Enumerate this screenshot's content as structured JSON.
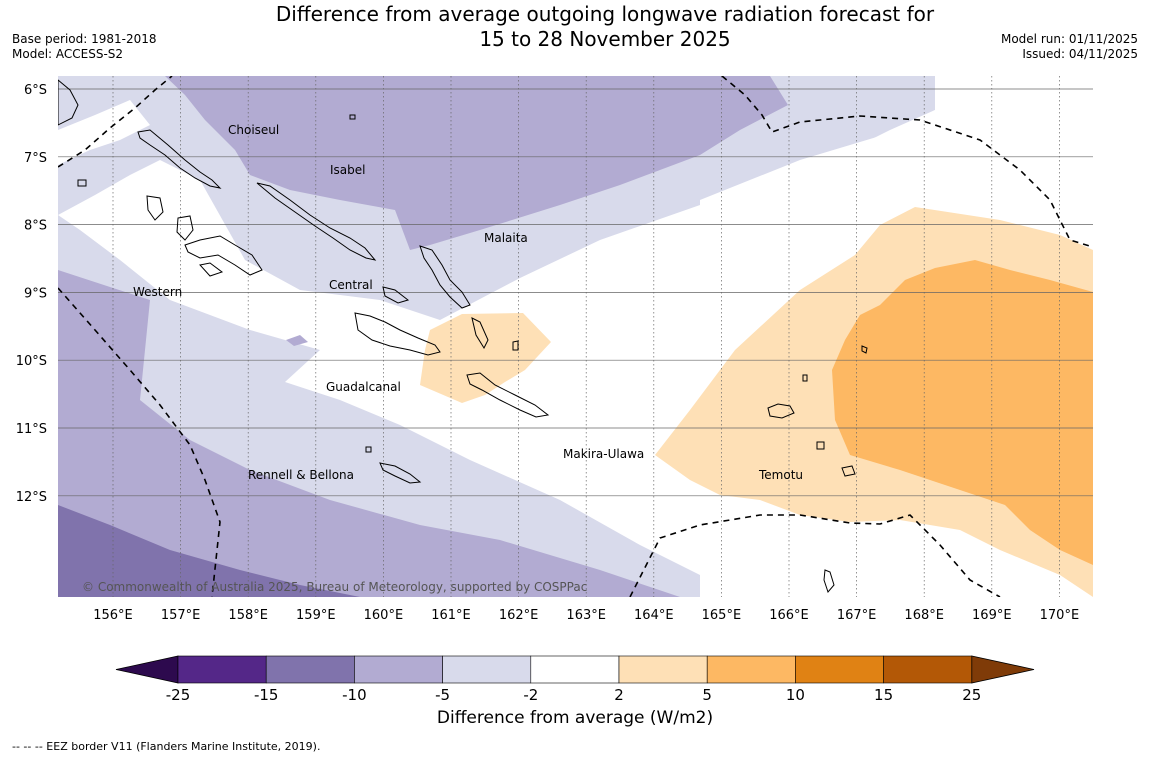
{
  "header": {
    "title_line1": "Difference from average outgoing longwave radiation forecast for",
    "title_line2": "15 to 28 November 2025",
    "base_period": "Base period: 1981-2018",
    "model": "Model: ACCESS-S2",
    "model_run": "Model run: 01/11/2025",
    "issued": "Issued: 04/11/2025"
  },
  "map": {
    "lat_labels": [
      "6°S",
      "7°S",
      "8°S",
      "9°S",
      "10°S",
      "11°S",
      "12°S"
    ],
    "lon_labels": [
      "156°E",
      "157°E",
      "158°E",
      "159°E",
      "160°E",
      "161°E",
      "162°E",
      "163°E",
      "164°E",
      "165°E",
      "166°E",
      "167°E",
      "168°E",
      "169°E",
      "170°E"
    ],
    "provinces": [
      "Choiseul",
      "Isabel",
      "Malaita",
      "Western",
      "Central",
      "Guadalcanal",
      "Makira-Ulawa",
      "Temotu",
      "Rennell & Bellona"
    ],
    "copyright": "© Commonwealth of Australia 2025, Bureau of Meteorology, supported by COSPPac"
  },
  "colorbar": {
    "title": "Difference from average (W/m2)",
    "levels": [
      "-25",
      "-15",
      "-10",
      "-5",
      "-2",
      "2",
      "5",
      "10",
      "15",
      "25"
    ],
    "colors": [
      "#2d0a4e",
      "#542788",
      "#8073ac",
      "#b2abd2",
      "#d8daeb",
      "#ffffff",
      "#fee0b6",
      "#fdb863",
      "#e08214",
      "#b35806",
      "#7f3b08"
    ]
  },
  "footer": {
    "eez_note": "--  --  -- EEZ border V11 (Flanders Marine Institute, 2019)."
  }
}
